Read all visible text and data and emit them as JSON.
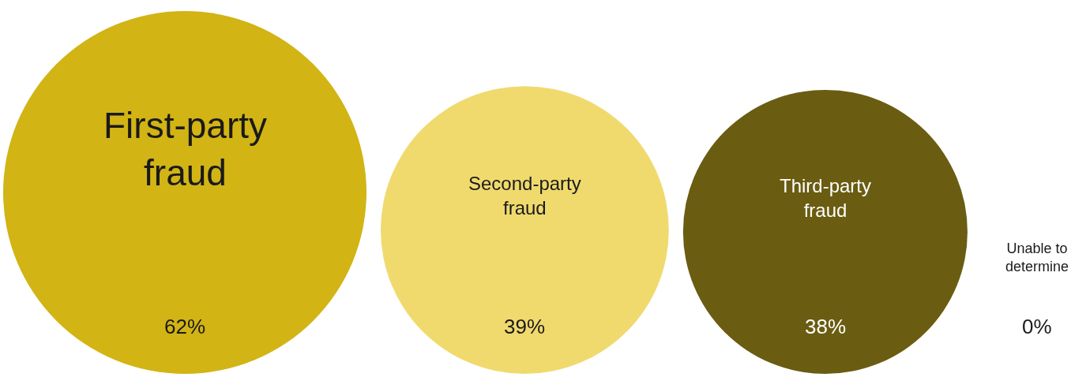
{
  "chart_data": {
    "type": "other",
    "categories": [
      "First-party fraud",
      "Second-party fraud",
      "Third-party fraud",
      "Unable to determine"
    ],
    "values": [
      62,
      39,
      38,
      0
    ],
    "value_labels": [
      "62%",
      "39%",
      "38%",
      "0%"
    ],
    "colors": [
      "#d2b414",
      "#f0da6e",
      "#6a5c11",
      "#ffffff"
    ]
  }
}
